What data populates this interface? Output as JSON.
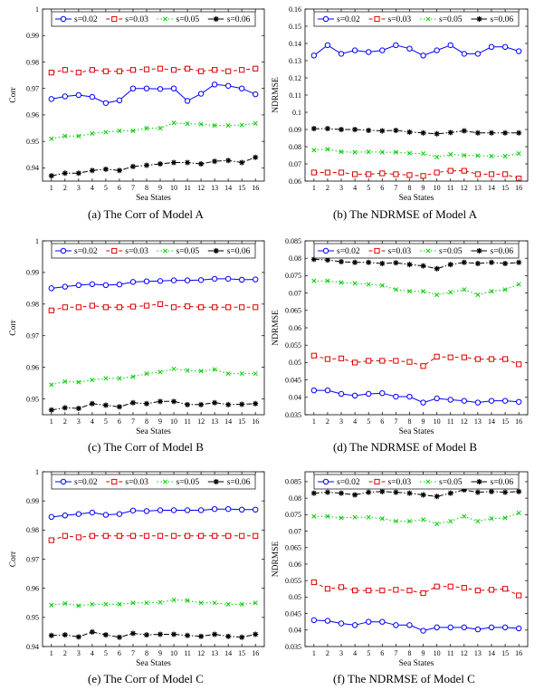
{
  "chart_data": [
    {
      "id": "a",
      "type": "line",
      "caption": "(a)  The Corr of Model A",
      "xlabel": "Sea States",
      "ylabel": "Corr",
      "x": [
        1,
        2,
        3,
        4,
        5,
        6,
        7,
        8,
        9,
        10,
        11,
        12,
        13,
        14,
        15,
        16
      ],
      "yticks": [
        "0.94",
        "0.95",
        "0.96",
        "0.97",
        "0.98",
        "0.99",
        "1"
      ],
      "ylim": [
        0.935,
        1.0
      ],
      "legend": [
        "s=0.02",
        "s=0.03",
        "s=0.05",
        "s=0.06"
      ],
      "series": [
        {
          "name": "s=0.02",
          "values": [
            0.966,
            0.967,
            0.9675,
            0.9668,
            0.9645,
            0.9655,
            0.97,
            0.97,
            0.9698,
            0.97,
            0.9653,
            0.968,
            0.9715,
            0.971,
            0.97,
            0.9678
          ]
        },
        {
          "name": "s=0.03",
          "values": [
            0.976,
            0.977,
            0.976,
            0.977,
            0.9765,
            0.9765,
            0.977,
            0.9772,
            0.9775,
            0.977,
            0.9775,
            0.9765,
            0.977,
            0.9765,
            0.977,
            0.9775
          ]
        },
        {
          "name": "s=0.05",
          "values": [
            0.951,
            0.952,
            0.952,
            0.953,
            0.9535,
            0.954,
            0.954,
            0.955,
            0.955,
            0.957,
            0.9567,
            0.9565,
            0.956,
            0.956,
            0.9562,
            0.9568
          ]
        },
        {
          "name": "s=0.06",
          "values": [
            0.937,
            0.938,
            0.938,
            0.939,
            0.9395,
            0.939,
            0.9405,
            0.941,
            0.9415,
            0.942,
            0.942,
            0.9415,
            0.9425,
            0.9428,
            0.942,
            0.944
          ]
        }
      ]
    },
    {
      "id": "b",
      "type": "line",
      "caption": "(b)  The NDRMSE of Model A",
      "xlabel": "Sea States",
      "ylabel": "NDRMSE",
      "x": [
        1,
        2,
        3,
        4,
        5,
        6,
        7,
        8,
        9,
        10,
        11,
        12,
        13,
        14,
        15,
        16
      ],
      "yticks": [
        "0.06",
        "0.07",
        "0.08",
        "0.09",
        "0.1",
        "0.11",
        "0.12",
        "0.13",
        "0.14",
        "0.15",
        "0.16"
      ],
      "ylim": [
        0.06,
        0.16
      ],
      "legend": [
        "s=0.02",
        "s=0.03",
        "s=0.05",
        "s=0.06"
      ],
      "series": [
        {
          "name": "s=0.02",
          "values": [
            0.133,
            0.139,
            0.134,
            0.136,
            0.135,
            0.136,
            0.139,
            0.137,
            0.133,
            0.136,
            0.139,
            0.134,
            0.134,
            0.138,
            0.138,
            0.1355
          ]
        },
        {
          "name": "s=0.03",
          "values": [
            0.065,
            0.065,
            0.065,
            0.064,
            0.064,
            0.0645,
            0.064,
            0.0635,
            0.063,
            0.065,
            0.066,
            0.066,
            0.064,
            0.064,
            0.064,
            0.0615
          ]
        },
        {
          "name": "s=0.05",
          "values": [
            0.078,
            0.0785,
            0.077,
            0.0768,
            0.077,
            0.0768,
            0.0768,
            0.0762,
            0.076,
            0.074,
            0.0755,
            0.075,
            0.0748,
            0.0745,
            0.0745,
            0.076
          ]
        },
        {
          "name": "s=0.06",
          "values": [
            0.0905,
            0.0905,
            0.09,
            0.09,
            0.0895,
            0.0892,
            0.0895,
            0.0885,
            0.088,
            0.0875,
            0.0882,
            0.0892,
            0.088,
            0.088,
            0.088,
            0.088
          ]
        }
      ]
    },
    {
      "id": "c",
      "type": "line",
      "caption": "(c)  The Corr of Model B",
      "xlabel": "Sea States",
      "ylabel": "Corr",
      "x": [
        1,
        2,
        3,
        4,
        5,
        6,
        7,
        8,
        9,
        10,
        11,
        12,
        13,
        14,
        15,
        16
      ],
      "yticks": [
        "0.95",
        "0.96",
        "0.97",
        "0.98",
        "0.99",
        "1"
      ],
      "ylim": [
        0.945,
        1.0
      ],
      "legend": [
        "s=0.02",
        "s=0.03",
        "s=0.05",
        "s=0.06"
      ],
      "series": [
        {
          "name": "s=0.02",
          "values": [
            0.985,
            0.9855,
            0.986,
            0.9863,
            0.986,
            0.9862,
            0.987,
            0.9872,
            0.9873,
            0.9875,
            0.9875,
            0.9876,
            0.988,
            0.988,
            0.9877,
            0.9878
          ]
        },
        {
          "name": "s=0.03",
          "values": [
            0.978,
            0.979,
            0.979,
            0.9795,
            0.979,
            0.979,
            0.9792,
            0.9795,
            0.98,
            0.979,
            0.9793,
            0.979,
            0.979,
            0.979,
            0.979,
            0.979
          ]
        },
        {
          "name": "s=0.05",
          "values": [
            0.9545,
            0.9555,
            0.9553,
            0.956,
            0.9565,
            0.9565,
            0.957,
            0.958,
            0.9585,
            0.9595,
            0.959,
            0.9588,
            0.9593,
            0.958,
            0.958,
            0.958
          ]
        },
        {
          "name": "s=0.06",
          "values": [
            0.9465,
            0.9472,
            0.947,
            0.9485,
            0.948,
            0.9475,
            0.9488,
            0.9485,
            0.9492,
            0.9492,
            0.9482,
            0.9482,
            0.9488,
            0.9482,
            0.9483,
            0.9485
          ]
        }
      ]
    },
    {
      "id": "d",
      "type": "line",
      "caption": "(d)  The NDRMSE of Model B",
      "xlabel": "Sea States",
      "ylabel": "NDRMSE",
      "x": [
        1,
        2,
        3,
        4,
        5,
        6,
        7,
        8,
        9,
        10,
        11,
        12,
        13,
        14,
        15,
        16
      ],
      "yticks": [
        "0.035",
        "0.04",
        "0.045",
        "0.05",
        "0.055",
        "0.06",
        "0.065",
        "0.07",
        "0.075",
        "0.08",
        "0.085"
      ],
      "ylim": [
        0.035,
        0.085
      ],
      "legend": [
        "s=0.02",
        "s=0.03",
        "s=0.05",
        "s=0.06"
      ],
      "series": [
        {
          "name": "s=0.02",
          "values": [
            0.042,
            0.042,
            0.041,
            0.0405,
            0.041,
            0.0412,
            0.0402,
            0.0402,
            0.0385,
            0.0397,
            0.0393,
            0.039,
            0.0385,
            0.039,
            0.039,
            0.0387
          ]
        },
        {
          "name": "s=0.03",
          "values": [
            0.052,
            0.051,
            0.0512,
            0.05,
            0.0505,
            0.0505,
            0.0505,
            0.0502,
            0.049,
            0.0517,
            0.0515,
            0.0515,
            0.051,
            0.051,
            0.051,
            0.0495
          ]
        },
        {
          "name": "s=0.05",
          "values": [
            0.0735,
            0.0735,
            0.073,
            0.0728,
            0.0725,
            0.0722,
            0.071,
            0.0705,
            0.0705,
            0.0695,
            0.0702,
            0.071,
            0.0695,
            0.0705,
            0.071,
            0.0725
          ]
        },
        {
          "name": "s=0.06",
          "values": [
            0.0797,
            0.0795,
            0.079,
            0.0788,
            0.0788,
            0.0785,
            0.0787,
            0.0782,
            0.0778,
            0.077,
            0.0782,
            0.0788,
            0.0785,
            0.0788,
            0.0785,
            0.0788
          ]
        }
      ]
    },
    {
      "id": "e",
      "type": "line",
      "caption": "(e)  The Corr of Model C",
      "xlabel": "Sea States",
      "ylabel": "Corr",
      "x": [
        1,
        2,
        3,
        4,
        5,
        6,
        7,
        8,
        9,
        10,
        11,
        12,
        13,
        14,
        15,
        16
      ],
      "yticks": [
        "0.94",
        "0.95",
        "0.96",
        "0.97",
        "0.98",
        "0.99",
        "1"
      ],
      "ylim": [
        0.94,
        1.0
      ],
      "legend": [
        "s=0.02",
        "s=0.03",
        "s=0.05",
        "s=0.06"
      ],
      "series": [
        {
          "name": "s=0.02",
          "values": [
            0.9845,
            0.985,
            0.9855,
            0.986,
            0.9852,
            0.9855,
            0.9867,
            0.9865,
            0.9868,
            0.9868,
            0.9868,
            0.9868,
            0.9872,
            0.9872,
            0.987,
            0.987
          ]
        },
        {
          "name": "s=0.03",
          "values": [
            0.9765,
            0.978,
            0.9775,
            0.978,
            0.978,
            0.978,
            0.978,
            0.978,
            0.978,
            0.978,
            0.978,
            0.978,
            0.978,
            0.978,
            0.978,
            0.978
          ]
        },
        {
          "name": "s=0.05",
          "values": [
            0.9542,
            0.9548,
            0.954,
            0.9545,
            0.9545,
            0.9545,
            0.955,
            0.955,
            0.9552,
            0.956,
            0.9558,
            0.955,
            0.955,
            0.9545,
            0.9545,
            0.955
          ]
        },
        {
          "name": "s=0.06",
          "values": [
            0.9438,
            0.944,
            0.9433,
            0.945,
            0.944,
            0.9432,
            0.9445,
            0.944,
            0.9442,
            0.9442,
            0.9438,
            0.9435,
            0.9442,
            0.9435,
            0.9432,
            0.9442
          ]
        }
      ]
    },
    {
      "id": "f",
      "type": "line",
      "caption": "(f)  The NDRMSE of Model C",
      "xlabel": "Sea States",
      "ylabel": "NDRMSE",
      "x": [
        1,
        2,
        3,
        4,
        5,
        6,
        7,
        8,
        9,
        10,
        11,
        12,
        13,
        14,
        15,
        16
      ],
      "yticks": [
        "0.035",
        "0.04",
        "0.045",
        "0.05",
        "0.055",
        "0.06",
        "0.065",
        "0.07",
        "0.075",
        "0.08",
        "0.085"
      ],
      "ylim": [
        0.035,
        0.088
      ],
      "legend": [
        "s=0.02",
        "s=0.03",
        "s=0.05",
        "s=0.06"
      ],
      "series": [
        {
          "name": "s=0.02",
          "values": [
            0.043,
            0.0428,
            0.042,
            0.0415,
            0.0425,
            0.0425,
            0.0415,
            0.0415,
            0.0398,
            0.0408,
            0.0408,
            0.0408,
            0.0402,
            0.0408,
            0.0408,
            0.0405
          ]
        },
        {
          "name": "s=0.03",
          "values": [
            0.0545,
            0.0525,
            0.053,
            0.052,
            0.052,
            0.052,
            0.0522,
            0.052,
            0.0512,
            0.0532,
            0.0532,
            0.0528,
            0.052,
            0.0522,
            0.0525,
            0.0505
          ]
        },
        {
          "name": "s=0.05",
          "values": [
            0.0745,
            0.0745,
            0.074,
            0.0742,
            0.0742,
            0.0738,
            0.073,
            0.073,
            0.0735,
            0.0722,
            0.073,
            0.0745,
            0.073,
            0.0738,
            0.074,
            0.0755
          ]
        },
        {
          "name": "s=0.06",
          "values": [
            0.0815,
            0.0818,
            0.0815,
            0.081,
            0.0818,
            0.082,
            0.0818,
            0.0815,
            0.081,
            0.0805,
            0.0815,
            0.0825,
            0.0818,
            0.082,
            0.0818,
            0.082
          ]
        }
      ]
    }
  ],
  "styles": {
    "colors": [
      "#0000ff",
      "#dd0000",
      "#00cc00",
      "#000000"
    ],
    "markers": [
      "circle",
      "square",
      "x",
      "star"
    ],
    "dashes": [
      "",
      "4,3",
      "1.5,2.5",
      "6,2,1.5,2"
    ],
    "axis_color": "#000000"
  }
}
